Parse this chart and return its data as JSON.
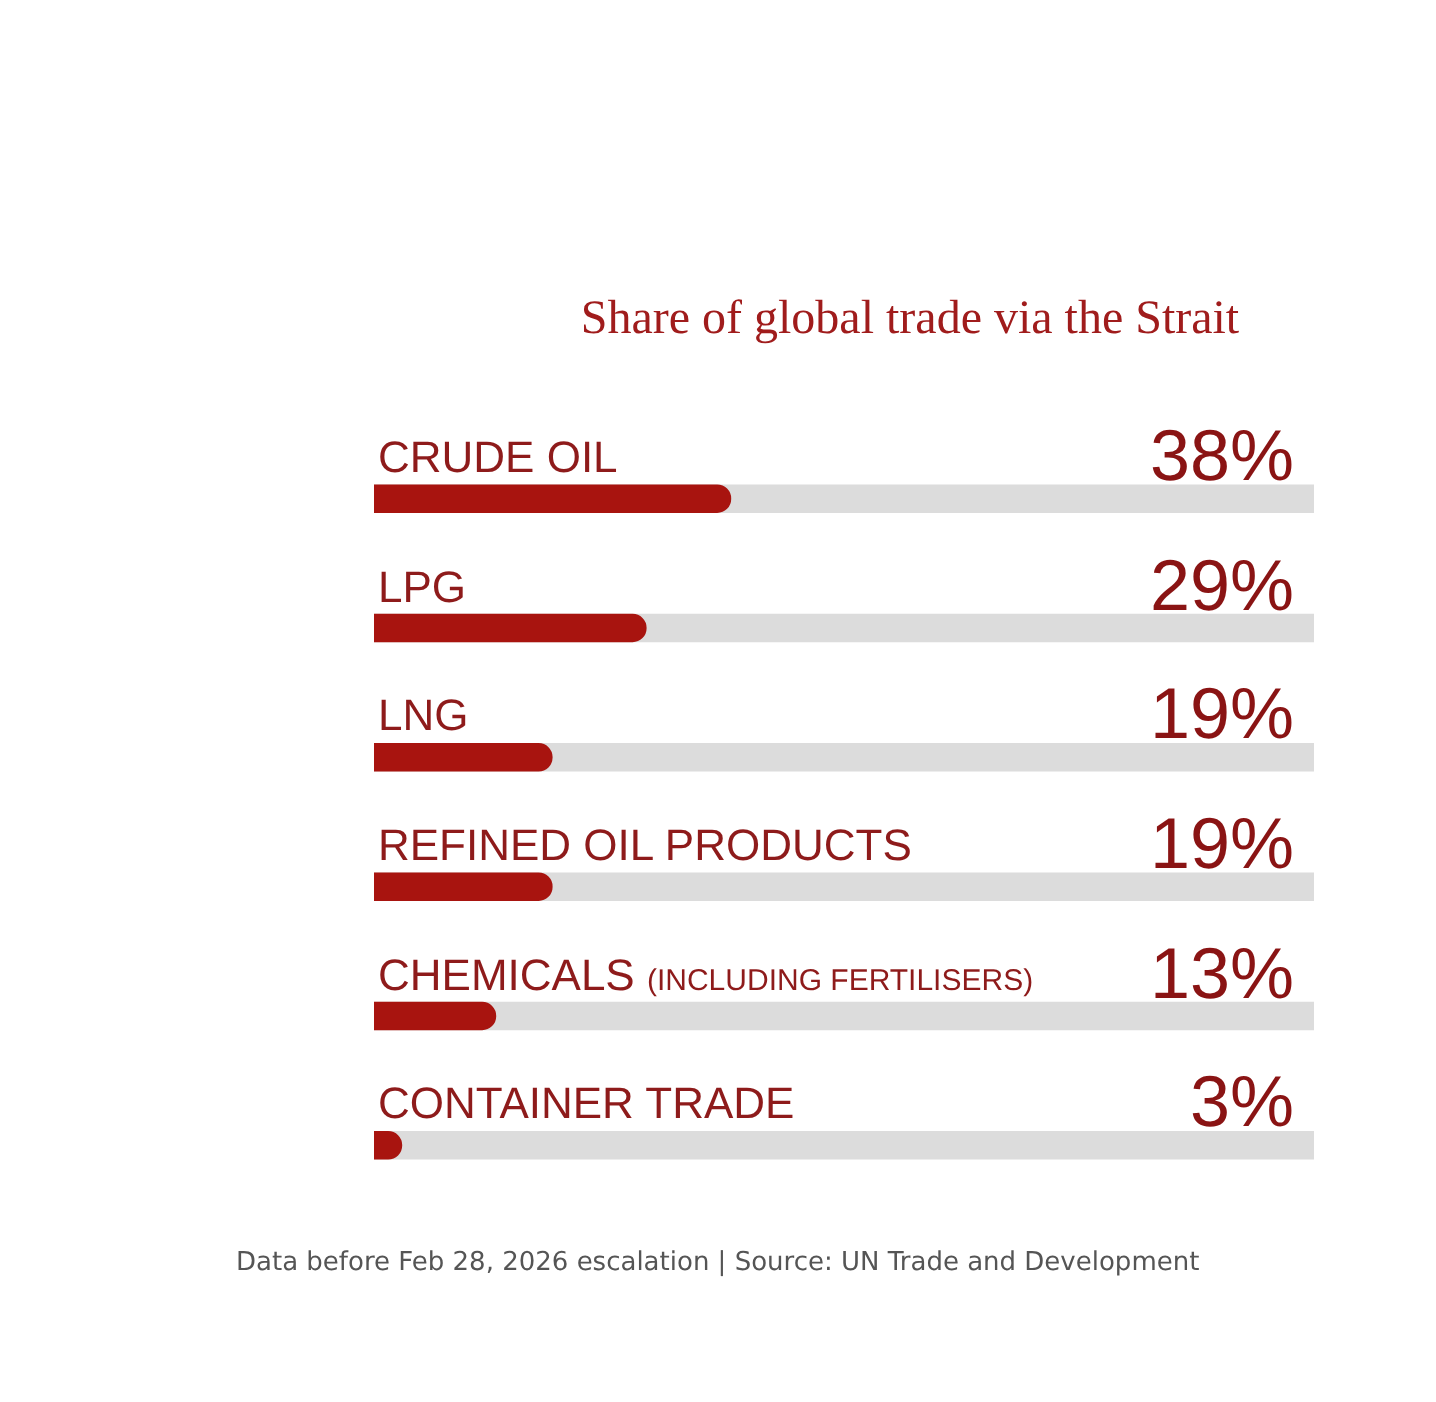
{
  "chart_data": {
    "type": "bar",
    "orientation": "horizontal",
    "title": "Share of global trade via the Strait",
    "annotations": [
      "Data before Feb 28, 2026 escalation | Source: UN Trade and Development"
    ],
    "categories": [
      "CRUDE OIL",
      "LPG",
      "LNG",
      "REFINED OIL PRODUCTS",
      "CHEMICALS (INCLUDING FERTILISERS)",
      "CONTAINER TRADE"
    ],
    "series": [
      {
        "color": "#a8140f",
        "values": [
          38,
          29,
          19,
          19,
          13,
          3
        ],
        "value_labels": [
          "38%",
          "29%",
          "19%",
          "19%",
          "13%",
          "3%"
        ]
      }
    ],
    "xlim": [
      0,
      100
    ]
  }
}
